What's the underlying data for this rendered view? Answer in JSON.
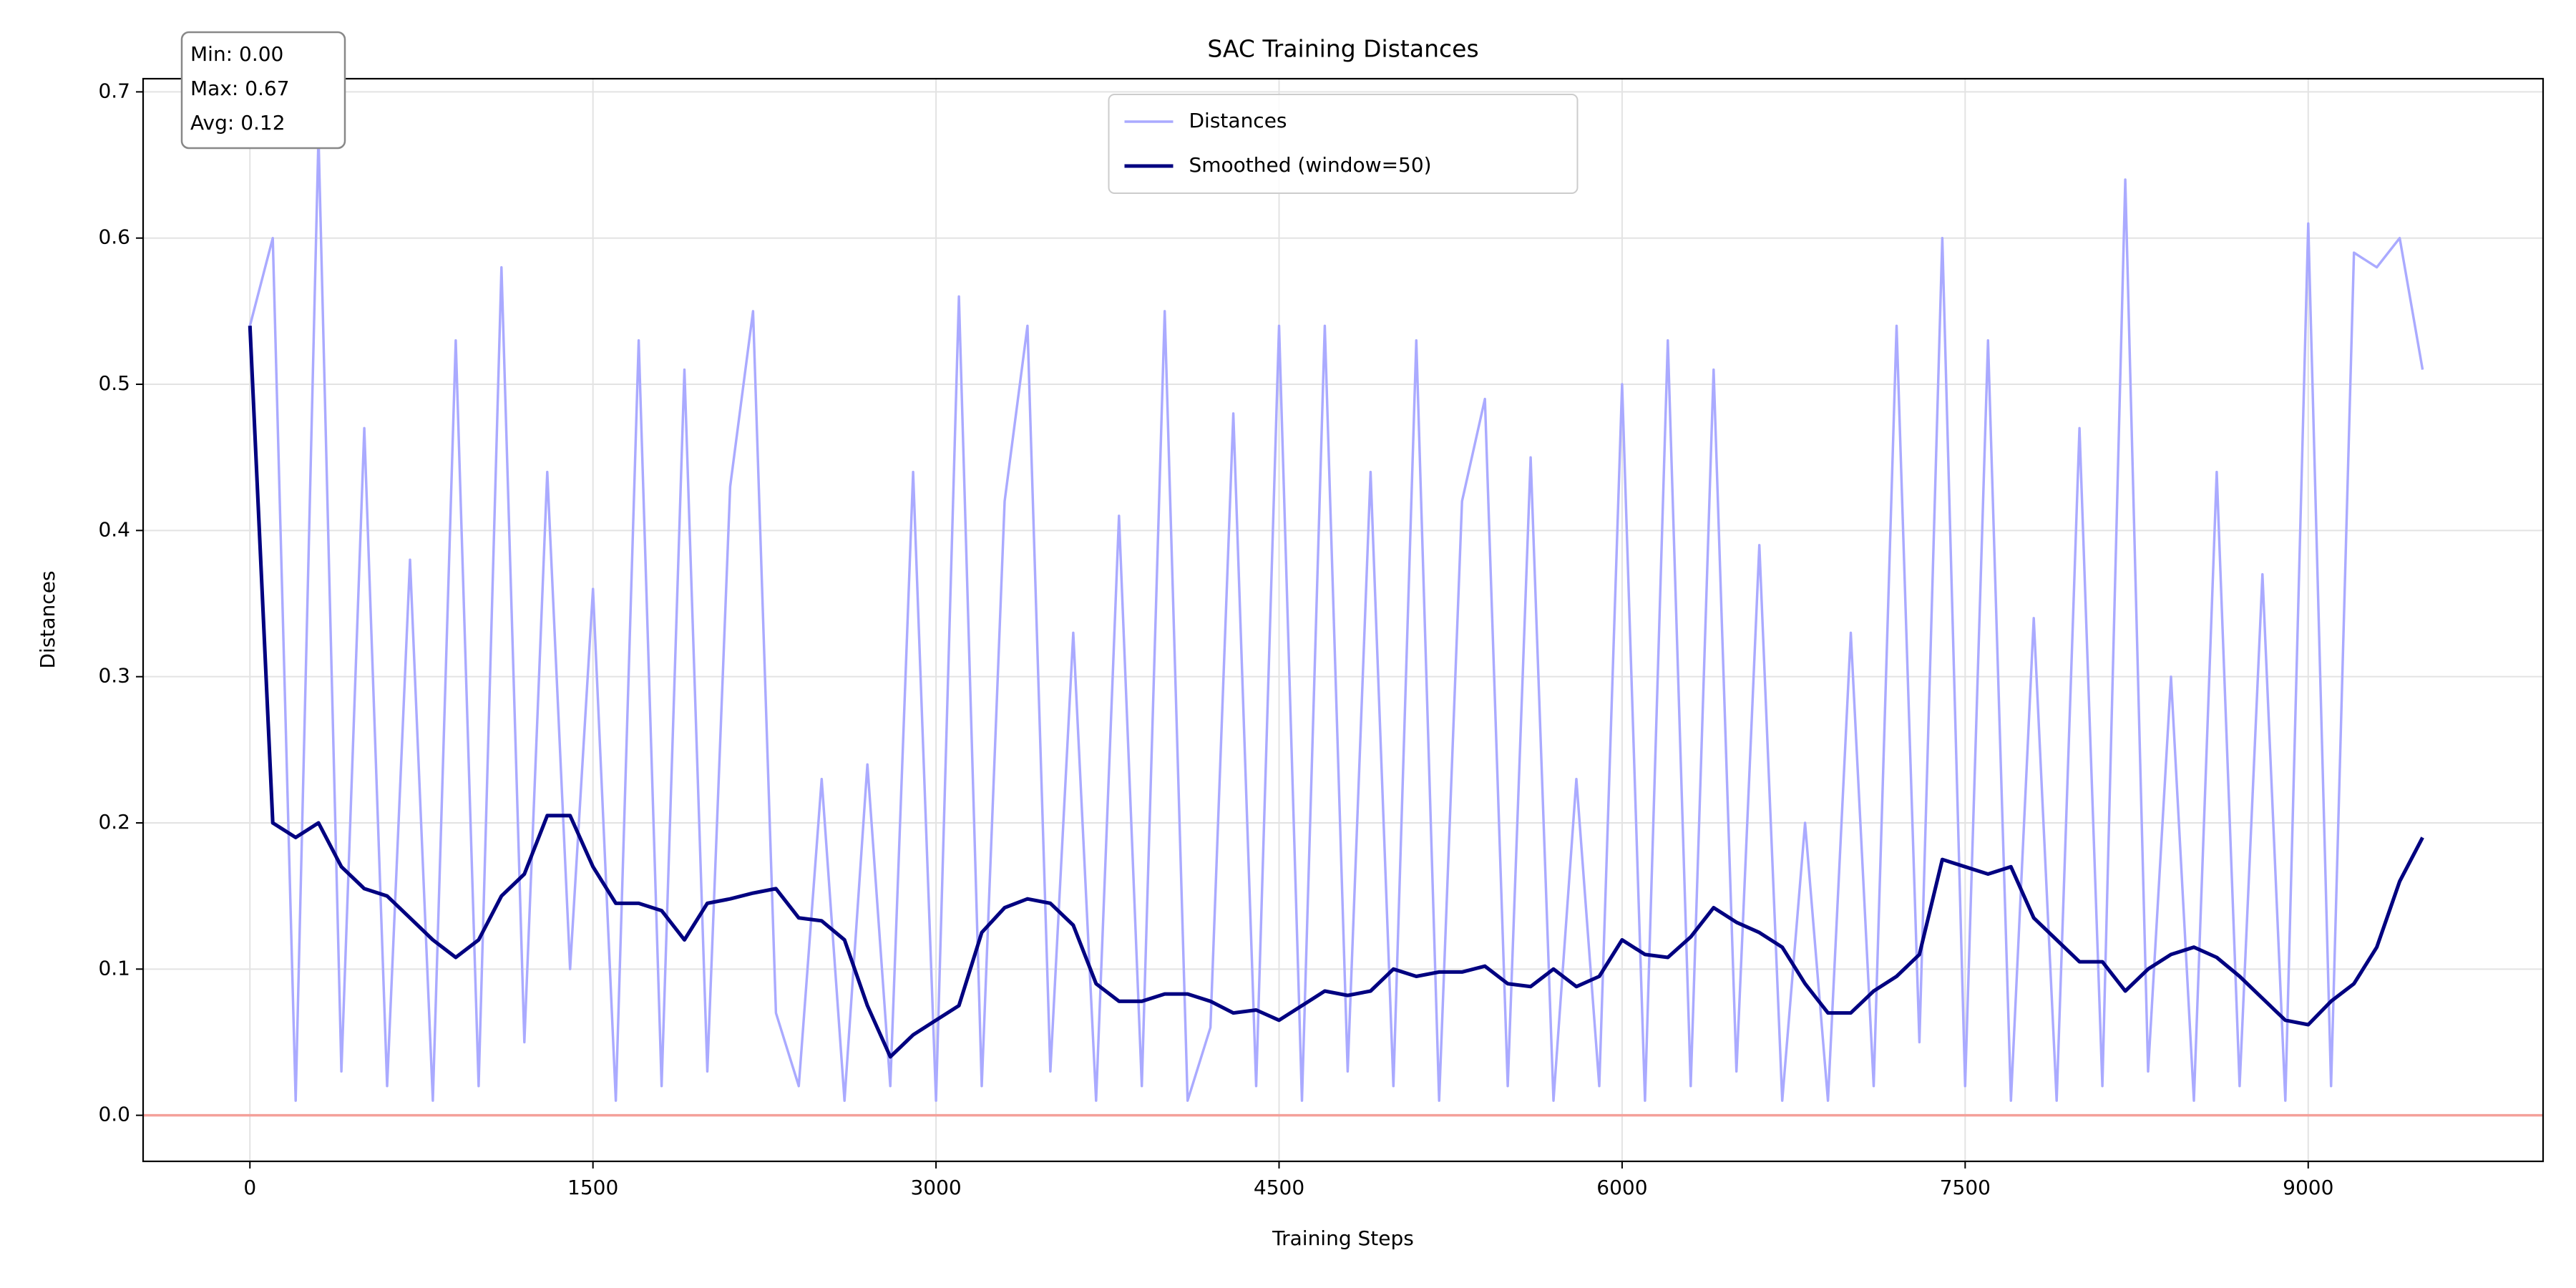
{
  "chart_data": {
    "type": "line",
    "title": "SAC Training Distances",
    "xlabel": "Training Steps",
    "ylabel": "Distances",
    "x": [
      0,
      100,
      200,
      300,
      400,
      500,
      600,
      700,
      800,
      900,
      1000,
      1100,
      1200,
      1300,
      1400,
      1500,
      1600,
      1700,
      1800,
      1900,
      2000,
      2100,
      2200,
      2300,
      2400,
      2500,
      2600,
      2700,
      2800,
      2900,
      3000,
      3100,
      3200,
      3300,
      3400,
      3500,
      3600,
      3700,
      3800,
      3900,
      4000,
      4100,
      4200,
      4300,
      4400,
      4500,
      4600,
      4700,
      4800,
      4900,
      5000,
      5100,
      5200,
      5300,
      5400,
      5500,
      5600,
      5700,
      5800,
      5900,
      6000,
      6100,
      6200,
      6300,
      6400,
      6500,
      6600,
      6700,
      6800,
      6900,
      7000,
      7100,
      7200,
      7300,
      7400,
      7500,
      7600,
      7700,
      7800,
      7900,
      8000,
      8100,
      8200,
      8300,
      8400,
      8500,
      8600,
      8700,
      8800,
      8900,
      9000,
      9100,
      9200,
      9300,
      9400,
      9500
    ],
    "series": [
      {
        "name": "Distances",
        "color": "#aaaaff",
        "width": 1.5,
        "values": [
          0.54,
          0.6,
          0.01,
          0.67,
          0.03,
          0.47,
          0.02,
          0.38,
          0.01,
          0.53,
          0.02,
          0.58,
          0.05,
          0.44,
          0.1,
          0.36,
          0.01,
          0.53,
          0.02,
          0.51,
          0.03,
          0.43,
          0.55,
          0.07,
          0.02,
          0.23,
          0.01,
          0.24,
          0.02,
          0.44,
          0.01,
          0.56,
          0.02,
          0.42,
          0.54,
          0.03,
          0.33,
          0.01,
          0.41,
          0.02,
          0.55,
          0.01,
          0.06,
          0.48,
          0.02,
          0.54,
          0.01,
          0.54,
          0.03,
          0.44,
          0.02,
          0.53,
          0.01,
          0.42,
          0.49,
          0.02,
          0.45,
          0.01,
          0.23,
          0.02,
          0.5,
          0.01,
          0.53,
          0.02,
          0.51,
          0.03,
          0.39,
          0.01,
          0.2,
          0.01,
          0.33,
          0.02,
          0.54,
          0.05,
          0.6,
          0.02,
          0.53,
          0.01,
          0.34,
          0.01,
          0.47,
          0.02,
          0.64,
          0.03,
          0.3,
          0.01,
          0.44,
          0.02,
          0.37,
          0.01,
          0.61,
          0.02,
          0.59,
          0.58,
          0.6,
          0.51
        ]
      },
      {
        "name": "Smoothed (window=50)",
        "color": "#000080",
        "width": 2.2,
        "values": [
          0.54,
          0.2,
          0.19,
          0.2,
          0.17,
          0.155,
          0.15,
          0.135,
          0.12,
          0.108,
          0.12,
          0.15,
          0.165,
          0.205,
          0.205,
          0.17,
          0.145,
          0.145,
          0.14,
          0.12,
          0.145,
          0.148,
          0.152,
          0.155,
          0.135,
          0.133,
          0.12,
          0.075,
          0.04,
          0.055,
          0.065,
          0.075,
          0.125,
          0.142,
          0.148,
          0.145,
          0.13,
          0.09,
          0.078,
          0.078,
          0.083,
          0.083,
          0.078,
          0.07,
          0.072,
          0.065,
          0.075,
          0.085,
          0.082,
          0.085,
          0.1,
          0.095,
          0.098,
          0.098,
          0.102,
          0.09,
          0.088,
          0.1,
          0.088,
          0.095,
          0.12,
          0.11,
          0.108,
          0.122,
          0.142,
          0.132,
          0.125,
          0.115,
          0.09,
          0.07,
          0.07,
          0.085,
          0.095,
          0.11,
          0.175,
          0.17,
          0.165,
          0.17,
          0.135,
          0.12,
          0.105,
          0.105,
          0.085,
          0.1,
          0.11,
          0.115,
          0.108,
          0.095,
          0.08,
          0.065,
          0.062,
          0.078,
          0.09,
          0.115,
          0.16,
          0.19
        ]
      }
    ],
    "reference_line": {
      "value": 0,
      "color": "#f4a09a"
    },
    "annotations": [
      "Min: 0.00",
      "Max: 0.67",
      "Avg: 0.12"
    ],
    "xlim": [
      -467,
      10027
    ],
    "ylim": [
      -0.0315,
      0.709
    ],
    "xticks": [
      0,
      1500,
      3000,
      4500,
      6000,
      7500,
      9000
    ],
    "yticks": [
      {
        "value": 0,
        "label": "0.0"
      },
      0.1,
      0.2,
      0.3,
      0.4,
      0.5,
      0.6,
      0.7
    ],
    "grid": true,
    "legend": "upper center"
  }
}
